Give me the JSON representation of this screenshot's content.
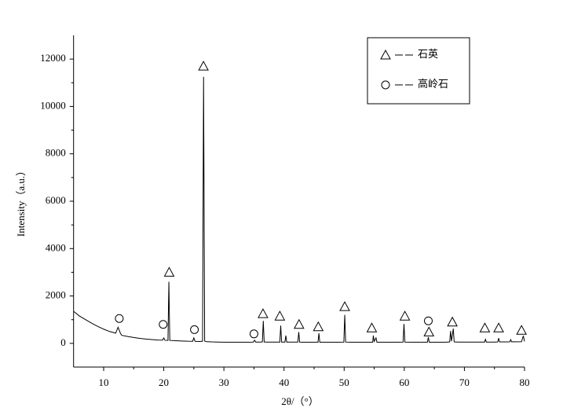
{
  "chart_data": {
    "type": "line",
    "x_label": "2θ/（°）",
    "y_label": "Intensity（a.u.）",
    "xlim": [
      5,
      80
    ],
    "xticks": [
      10,
      20,
      30,
      40,
      50,
      60,
      70,
      80
    ],
    "ylim": [
      -1000,
      13000
    ],
    "yticks": [
      0,
      2000,
      4000,
      6000,
      8000,
      10000,
      12000
    ],
    "x": [
      5,
      6,
      7,
      8,
      9,
      10,
      11,
      12,
      12.4,
      12.8,
      13,
      14,
      15,
      16,
      17,
      18,
      19,
      19.8,
      20.0,
      20.2,
      20.7,
      20.85,
      21.0,
      22,
      23,
      24,
      24.8,
      25.0,
      25.2,
      26,
      26.45,
      26.62,
      26.8,
      27,
      28,
      29,
      30,
      31,
      32,
      33,
      34,
      34.9,
      35.1,
      35.3,
      36,
      36.4,
      36.55,
      36.7,
      37,
      38,
      39.3,
      39.45,
      39.6,
      40.15,
      40.3,
      40.45,
      41,
      42.3,
      42.45,
      42.6,
      43,
      44,
      45,
      45.65,
      45.8,
      45.95,
      47,
      48,
      49,
      49.95,
      50.1,
      50.25,
      51,
      52,
      53,
      54,
      54.75,
      54.85,
      55.0,
      55.3,
      55.45,
      56,
      57,
      58,
      59,
      59.8,
      59.95,
      60.1,
      61,
      62,
      63,
      63.85,
      64.0,
      64.15,
      65,
      66,
      67,
      67.55,
      67.7,
      67.85,
      68.15,
      68.3,
      69,
      70,
      71,
      72,
      73.35,
      73.5,
      73.65,
      74,
      75,
      75.55,
      75.7,
      75.85,
      77,
      77.55,
      77.7,
      77.85,
      78.5,
      79.5,
      79.8,
      80
    ],
    "series": [
      {
        "color": "#000000",
        "values": [
          1350,
          1150,
          1000,
          850,
          720,
          600,
          500,
          430,
          680,
          420,
          340,
          290,
          250,
          210,
          180,
          160,
          140,
          135,
          230,
          130,
          125,
          2600,
          125,
          110,
          100,
          90,
          88,
          230,
          86,
          80,
          90,
          11250,
          100,
          75,
          60,
          55,
          50,
          50,
          48,
          48,
          50,
          55,
          130,
          55,
          55,
          60,
          950,
          60,
          55,
          55,
          55,
          750,
          55,
          55,
          330,
          55,
          52,
          52,
          480,
          52,
          50,
          50,
          50,
          50,
          430,
          50,
          50,
          50,
          50,
          55,
          1200,
          55,
          50,
          50,
          50,
          50,
          50,
          330,
          80,
          230,
          50,
          50,
          50,
          50,
          50,
          55,
          820,
          55,
          50,
          50,
          50,
          50,
          260,
          50,
          50,
          50,
          50,
          60,
          520,
          90,
          620,
          60,
          55,
          55,
          55,
          55,
          55,
          170,
          55,
          55,
          55,
          60,
          220,
          60,
          60,
          65,
          160,
          65,
          65,
          70,
          320,
          80
        ]
      }
    ],
    "legend": [
      {
        "symbol": "triangle",
        "name": "石英"
      },
      {
        "symbol": "circle",
        "name": "高岭石"
      }
    ],
    "annotations": [
      {
        "symbol": "triangle",
        "x": 20.9,
        "y": 3000
      },
      {
        "symbol": "triangle",
        "x": 26.6,
        "y": 11700
      },
      {
        "symbol": "triangle",
        "x": 36.5,
        "y": 1250
      },
      {
        "symbol": "triangle",
        "x": 39.3,
        "y": 1150
      },
      {
        "symbol": "triangle",
        "x": 42.5,
        "y": 800
      },
      {
        "symbol": "triangle",
        "x": 45.7,
        "y": 700
      },
      {
        "symbol": "triangle",
        "x": 50.1,
        "y": 1550
      },
      {
        "symbol": "triangle",
        "x": 54.6,
        "y": 650
      },
      {
        "symbol": "triangle",
        "x": 60.1,
        "y": 1150
      },
      {
        "symbol": "triangle",
        "x": 64.1,
        "y": 480
      },
      {
        "symbol": "triangle",
        "x": 68.0,
        "y": 900
      },
      {
        "symbol": "triangle",
        "x": 73.4,
        "y": 650
      },
      {
        "symbol": "triangle",
        "x": 75.7,
        "y": 650
      },
      {
        "symbol": "triangle",
        "x": 79.5,
        "y": 550
      },
      {
        "symbol": "circle",
        "x": 12.6,
        "y": 1050
      },
      {
        "symbol": "circle",
        "x": 19.9,
        "y": 800
      },
      {
        "symbol": "circle",
        "x": 25.1,
        "y": 580
      },
      {
        "symbol": "circle",
        "x": 35.0,
        "y": 400
      },
      {
        "symbol": "circle",
        "x": 64.0,
        "y": 950
      }
    ]
  }
}
